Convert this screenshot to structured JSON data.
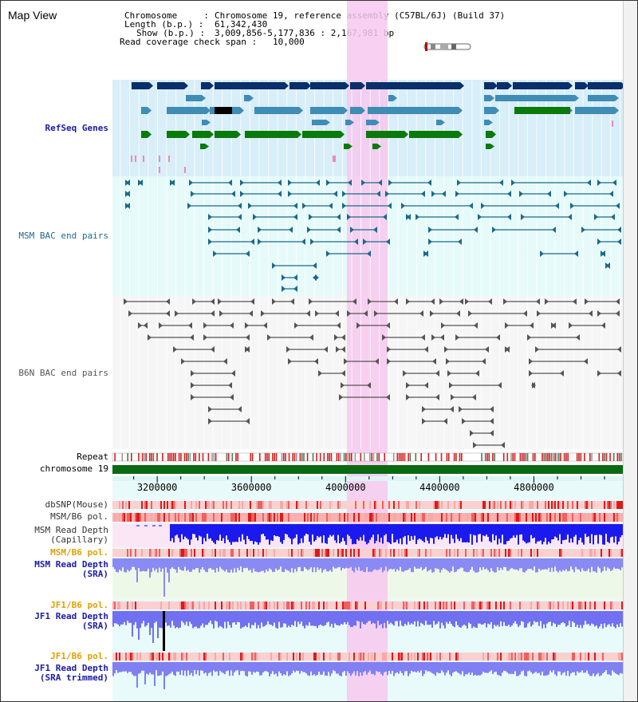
{
  "header": {
    "title": "Map View"
  },
  "info": {
    "chromosome_label": "Chromosome     :",
    "chromosome_value": "Chromosome 19, reference assembly (C57BL/6J) (Build 37)",
    "length_label": "Length (b.p.) :",
    "length_value": "61,342,430",
    "show_label": "Show (b.p.) :",
    "show_value": "3,009,856-5,177,836 : 2,167,981 bp",
    "coverage_label": "Read coverage check span :",
    "coverage_value": "10,000"
  },
  "axis": {
    "ticks": [
      "3200000",
      "3600000",
      "4000000",
      "4400000",
      "4800000"
    ],
    "tick_values": [
      3200000,
      3600000,
      4000000,
      4400000,
      4800000
    ]
  },
  "tracks": {
    "refseq": "RefSeq Genes",
    "msm_bac": "MSM BAC end pairs",
    "b6n_bac": "B6N BAC end pairs",
    "repeat": "Repeat",
    "chromosome": "chromosome 19",
    "dbsnp": "dbSNP(Mouse)",
    "msm_b6_pol_1": "MSM/B6 pol.",
    "msm_read_depth_cap_1": "MSM Read Depth",
    "msm_read_depth_cap_2": "(Capillary)",
    "msm_b6_pol_2": "MSM/B6 pol.",
    "msm_read_depth_sra_1": "MSM Read Depth",
    "msm_read_depth_sra_2": "(SRA)",
    "jf1_b6_pol_1": "JF1/B6 pol.",
    "jf1_read_depth_1": "JF1 Read Depth",
    "jf1_read_depth_2": "(SRA)",
    "jf1_b6_pol_2": "JF1/B6 pol.",
    "jf1_read_depth_trim_1": "JF1 Read Depth",
    "jf1_read_depth_trim_2": "(SRA trimmed)"
  },
  "colors": {
    "refseq_bg": "#d8eef8",
    "msm_bac_bg": "#e6fafa",
    "b6n_bg": "#f6f6f6",
    "highlight": "#f7c8ef",
    "gene_dark": "#0a2f6b",
    "gene_mid": "#3f8cb5",
    "gene_green": "#0a7a0a",
    "bac_line": "#1b6a8a",
    "b6n_line": "#555555",
    "label_blue": "#1a1aaa",
    "label_orange": "#e0a000",
    "chromosome_green": "#0a6a12"
  }
}
